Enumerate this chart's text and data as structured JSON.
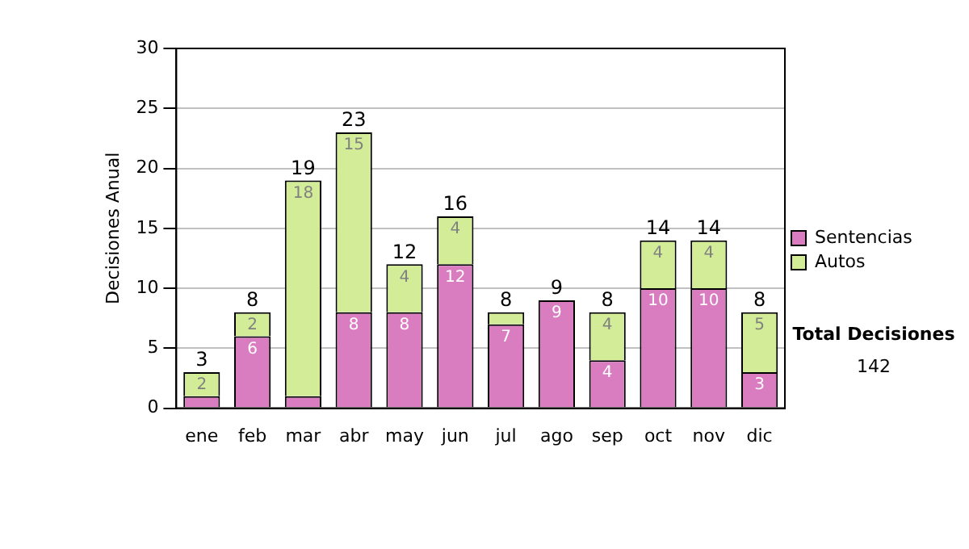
{
  "chart_data": {
    "type": "bar",
    "stacked": true,
    "ylabel": "Decisiones Anual",
    "categories": [
      "ene",
      "feb",
      "mar",
      "abr",
      "may",
      "jun",
      "jul",
      "ago",
      "sep",
      "oct",
      "nov",
      "dic"
    ],
    "series": [
      {
        "name": "Sentencias",
        "color": "#d97cc0",
        "values": [
          1,
          6,
          1,
          8,
          8,
          12,
          7,
          9,
          4,
          10,
          10,
          3
        ],
        "value_labels": [
          null,
          "6",
          null,
          "8",
          "8",
          "12",
          "7",
          "9",
          "4",
          "10",
          "10",
          "3"
        ]
      },
      {
        "name": "Autos",
        "color": "#d3ec98",
        "values": [
          2,
          2,
          18,
          15,
          4,
          4,
          1,
          0,
          4,
          4,
          4,
          5
        ],
        "value_labels": [
          "2",
          "2",
          "18",
          "15",
          "4",
          "4",
          null,
          null,
          "4",
          "4",
          "4",
          "5"
        ]
      }
    ],
    "totals": [
      "3",
      "8",
      "19",
      "23",
      "12",
      "16",
      "8",
      "9",
      "8",
      "14",
      "14",
      "8"
    ],
    "ylim": [
      0,
      30
    ],
    "yticks": [
      0,
      5,
      10,
      15,
      20,
      25,
      30
    ],
    "grid": "y",
    "legend": "right",
    "annotations": [
      "Total Decisiones",
      "142"
    ]
  }
}
